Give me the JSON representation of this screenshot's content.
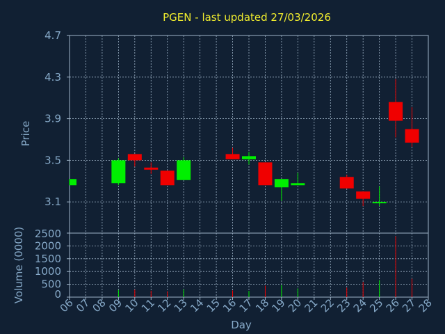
{
  "chart_data": {
    "type": "candlestick",
    "title": "PGEN - last updated 27/03/2026",
    "xlabel": "Day",
    "x_ticks": [
      "06",
      "07",
      "08",
      "09",
      "10",
      "11",
      "12",
      "13",
      "14",
      "15",
      "16",
      "17",
      "18",
      "19",
      "20",
      "21",
      "22",
      "23",
      "24",
      "25",
      "26",
      "27",
      "28"
    ],
    "price": {
      "ylabel": "Price",
      "ylim": [
        2.8,
        4.7
      ],
      "y_ticks": [
        "3.1",
        "3.5",
        "3.9",
        "4.3",
        "4.7"
      ],
      "candles": [
        {
          "day": "06",
          "open": 3.26,
          "high": 3.32,
          "low": 3.26,
          "close": 3.32
        },
        {
          "day": "09",
          "open": 3.28,
          "high": 3.52,
          "low": 3.26,
          "close": 3.5
        },
        {
          "day": "10",
          "open": 3.56,
          "high": 3.56,
          "low": 3.44,
          "close": 3.5
        },
        {
          "day": "11",
          "open": 3.43,
          "high": 3.48,
          "low": 3.37,
          "close": 3.41
        },
        {
          "day": "12",
          "open": 3.4,
          "high": 3.4,
          "low": 3.26,
          "close": 3.26
        },
        {
          "day": "13",
          "open": 3.31,
          "high": 3.53,
          "low": 3.31,
          "close": 3.5
        },
        {
          "day": "16",
          "open": 3.56,
          "high": 3.62,
          "low": 3.51,
          "close": 3.51
        },
        {
          "day": "17",
          "open": 3.51,
          "high": 3.58,
          "low": 3.46,
          "close": 3.54
        },
        {
          "day": "18",
          "open": 3.48,
          "high": 3.48,
          "low": 3.26,
          "close": 3.26
        },
        {
          "day": "19",
          "open": 3.24,
          "high": 3.32,
          "low": 3.11,
          "close": 3.32
        },
        {
          "day": "20",
          "open": 3.26,
          "high": 3.38,
          "low": 3.26,
          "close": 3.28
        },
        {
          "day": "23",
          "open": 3.34,
          "high": 3.36,
          "low": 3.23,
          "close": 3.23
        },
        {
          "day": "24",
          "open": 3.2,
          "high": 3.2,
          "low": 3.06,
          "close": 3.13
        },
        {
          "day": "25",
          "open": 3.1,
          "high": 3.25,
          "low": 3.06,
          "close": 3.1
        },
        {
          "day": "26",
          "open": 4.06,
          "high": 4.28,
          "low": 3.72,
          "close": 3.88
        },
        {
          "day": "27",
          "open": 3.8,
          "high": 4.01,
          "low": 3.63,
          "close": 3.67
        }
      ]
    },
    "volume": {
      "ylabel": "Volume (0000)",
      "ylim": [
        0,
        2500
      ],
      "y_ticks": [
        "0",
        "500",
        "1000",
        "1500",
        "2000",
        "2500"
      ],
      "bars": [
        {
          "day": "09",
          "value": 280,
          "direction": "up"
        },
        {
          "day": "10",
          "value": 290,
          "direction": "down"
        },
        {
          "day": "11",
          "value": 250,
          "direction": "down"
        },
        {
          "day": "12",
          "value": 230,
          "direction": "down"
        },
        {
          "day": "13",
          "value": 300,
          "direction": "up"
        },
        {
          "day": "16",
          "value": 260,
          "direction": "down"
        },
        {
          "day": "17",
          "value": 240,
          "direction": "up"
        },
        {
          "day": "18",
          "value": 450,
          "direction": "down"
        },
        {
          "day": "19",
          "value": 470,
          "direction": "up"
        },
        {
          "day": "20",
          "value": 340,
          "direction": "up"
        },
        {
          "day": "23",
          "value": 370,
          "direction": "down"
        },
        {
          "day": "24",
          "value": 590,
          "direction": "down"
        },
        {
          "day": "25",
          "value": 660,
          "direction": "up"
        },
        {
          "day": "26",
          "value": 2380,
          "direction": "down"
        },
        {
          "day": "27",
          "value": 720,
          "direction": "down"
        }
      ]
    },
    "grid": true,
    "colors": {
      "background": "#112033",
      "up": "#00f000",
      "down": "#f00000",
      "grid": "#9fb4c8",
      "axis_text": "#86a9c8",
      "title": "#f2ee2e"
    }
  }
}
